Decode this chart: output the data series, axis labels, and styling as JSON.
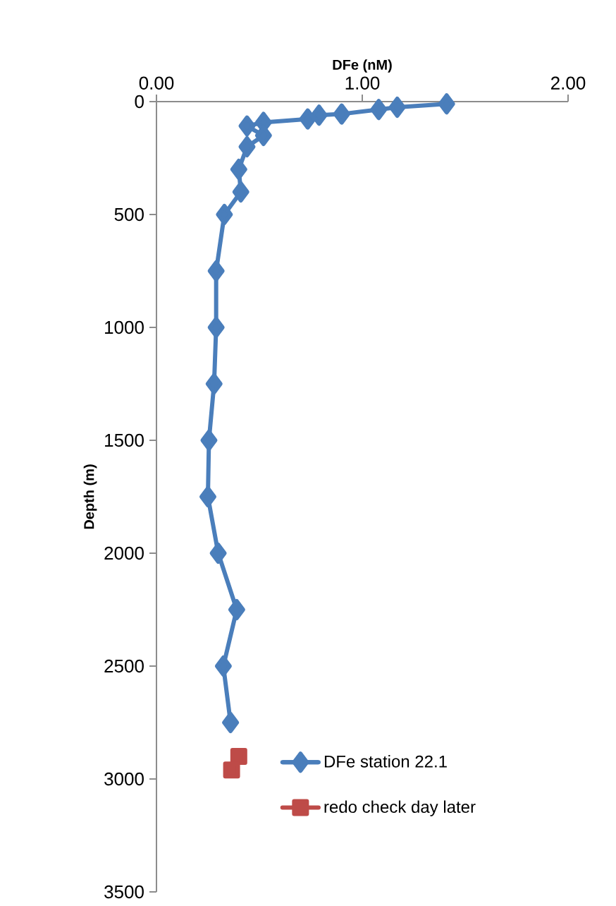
{
  "chart_data": {
    "type": "line",
    "xlabel": "DFe (nM)",
    "ylabel": "Depth (m)",
    "xlim": [
      0,
      2
    ],
    "xticks": [
      {
        "value": 0,
        "label": "0.00"
      },
      {
        "value": 1,
        "label": "1.00"
      },
      {
        "value": 2,
        "label": "2.00"
      }
    ],
    "ylim": [
      3500,
      0
    ],
    "yticks": [
      0,
      500,
      1000,
      1500,
      2000,
      2500,
      3000,
      3500
    ],
    "grid": false,
    "legend": "bottom right",
    "series": [
      {
        "name": "DFe station 22.1",
        "color": "#4a7ebb",
        "marker": "diamond",
        "x": [
          1.41,
          1.17,
          1.08,
          0.9,
          0.79,
          0.735,
          0.52,
          0.44,
          0.52,
          0.44,
          0.4,
          0.41,
          0.33,
          0.29,
          0.29,
          0.28,
          0.255,
          0.25,
          0.3,
          0.39,
          0.325,
          0.36
        ],
        "values": [
          10,
          25,
          35,
          55,
          60,
          77,
          92,
          108,
          150,
          200,
          300,
          400,
          500,
          750,
          1000,
          1250,
          1500,
          1750,
          2000,
          2250,
          2500,
          2750
        ]
      },
      {
        "name": "redo check day later",
        "type": "scatter",
        "color": "#be4b48",
        "marker": "square",
        "x": [
          0.4,
          0.365
        ],
        "values": [
          2900,
          2960
        ]
      }
    ]
  }
}
